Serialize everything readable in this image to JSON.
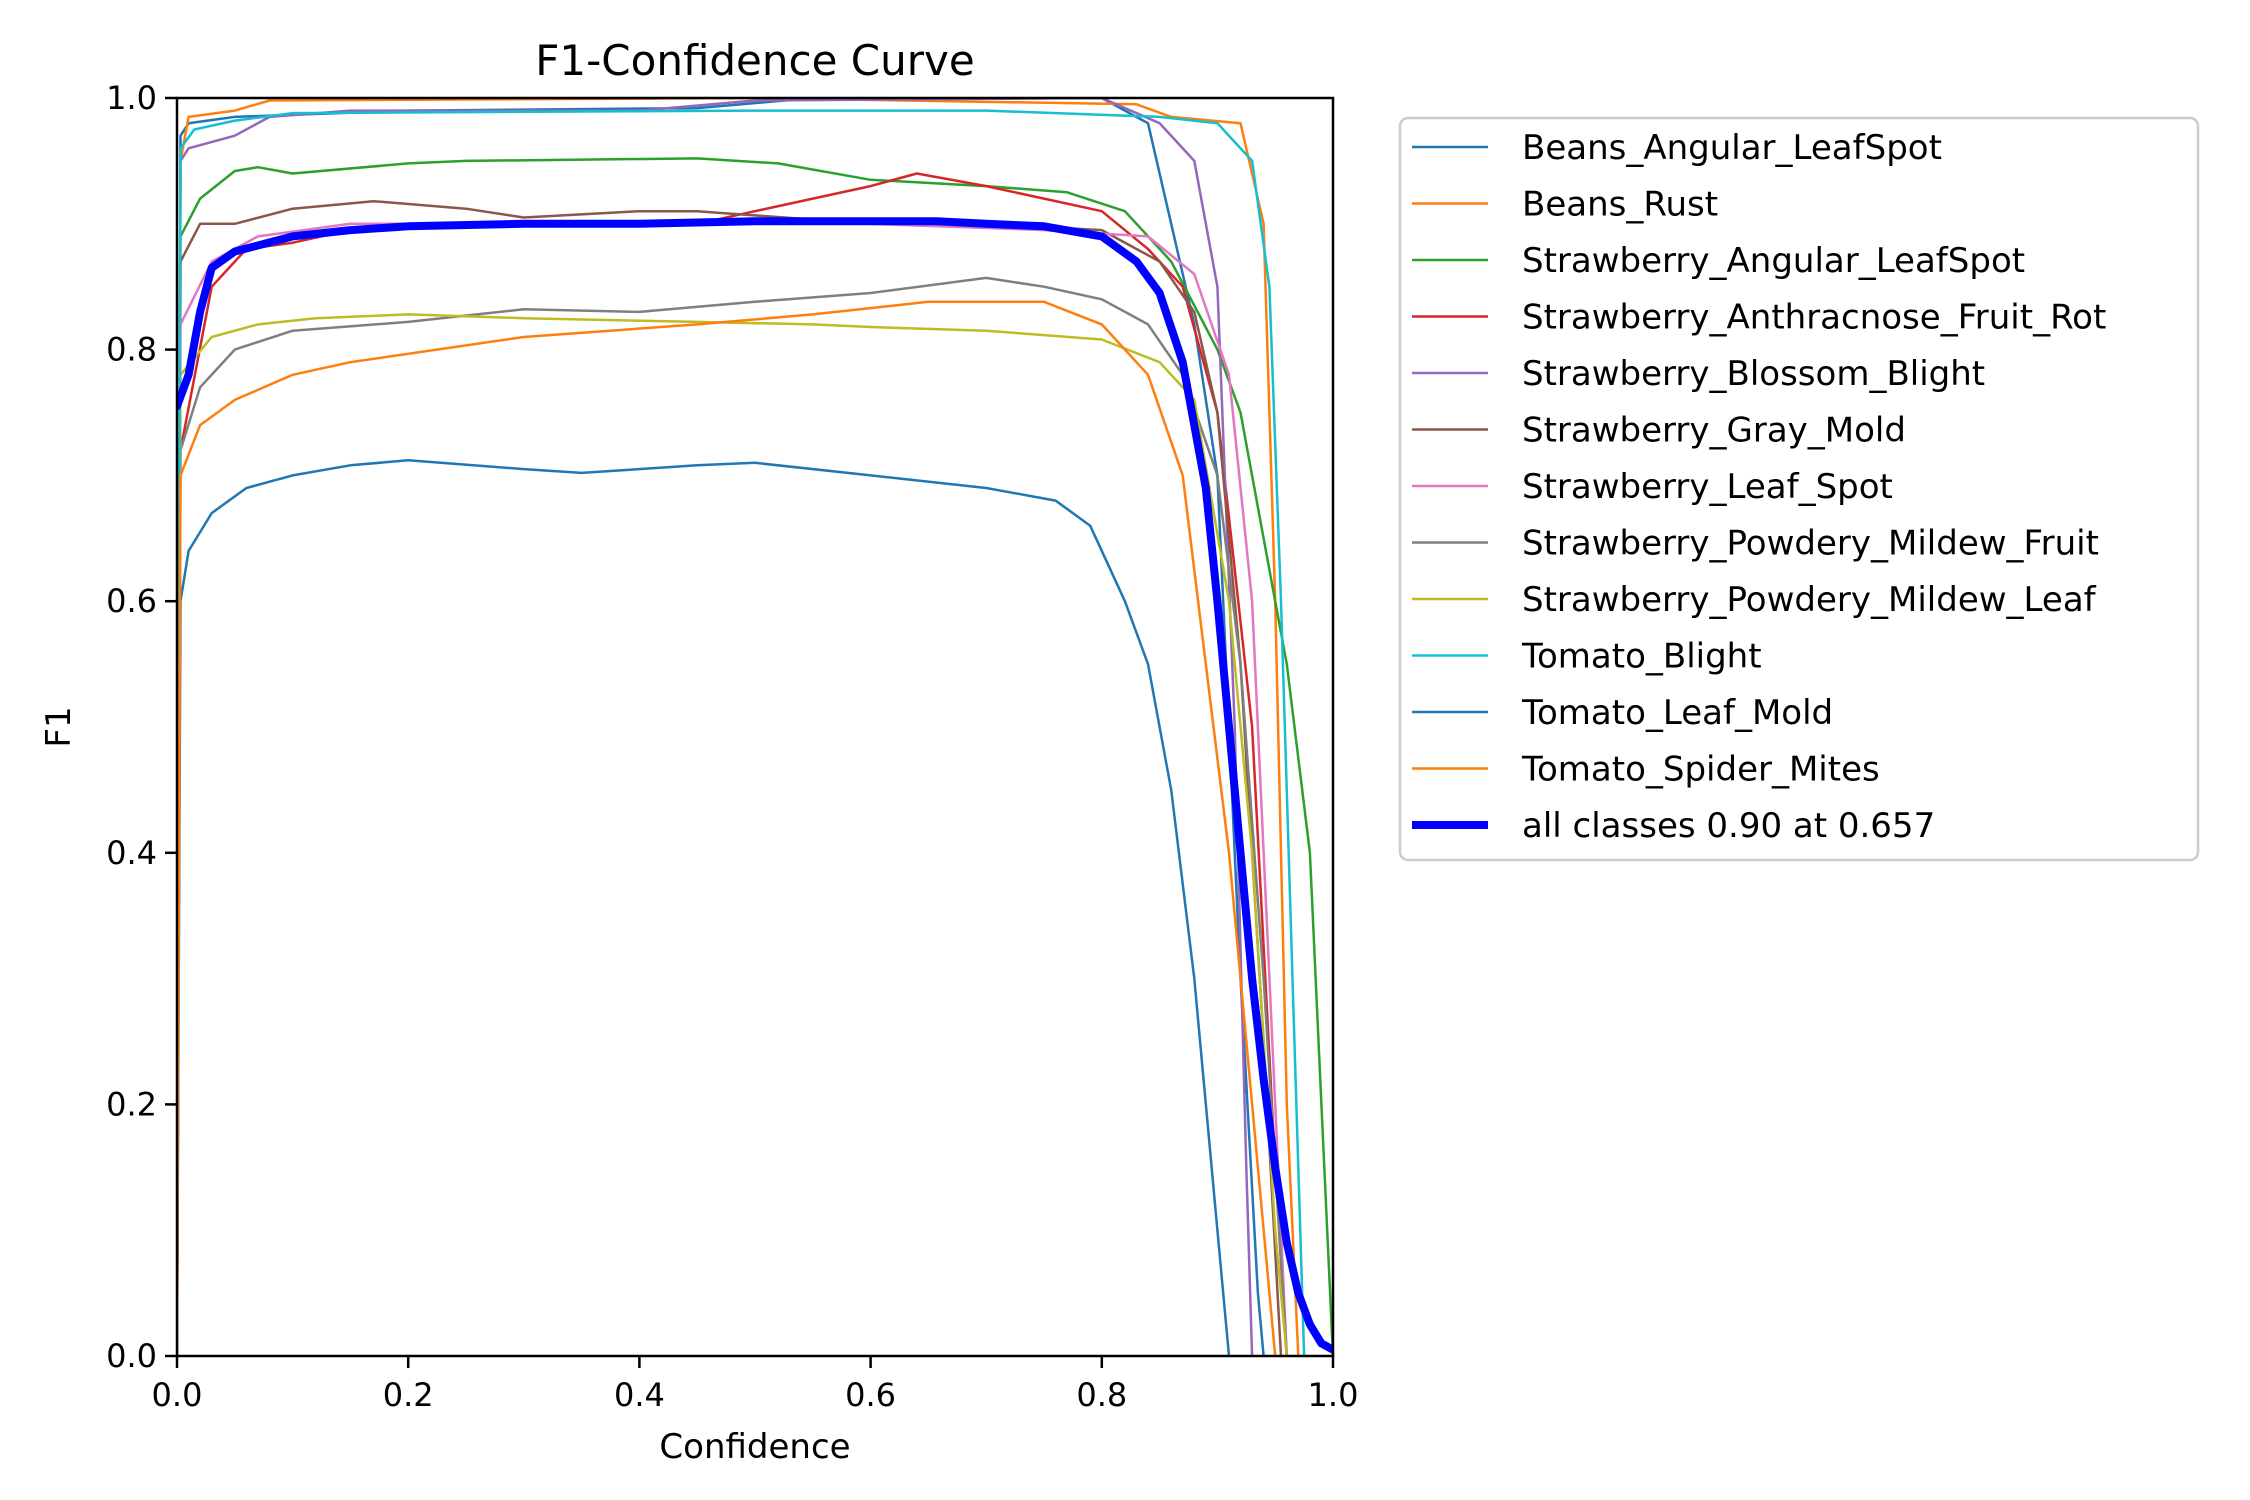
{
  "chart_data": {
    "type": "line",
    "title": "F1-Confidence Curve",
    "xlabel": "Confidence",
    "ylabel": "F1",
    "xlim": [
      0.0,
      1.0
    ],
    "ylim": [
      0.0,
      1.0
    ],
    "x_ticks": [
      "0.0",
      "0.2",
      "0.4",
      "0.6",
      "0.8",
      "1.0"
    ],
    "y_ticks": [
      "0.0",
      "0.2",
      "0.4",
      "0.6",
      "0.8",
      "1.0"
    ],
    "grid": false,
    "legend_position": "outside-right-top",
    "series": [
      {
        "name": "Beans_Angular_LeafSpot",
        "color": "#1f77b4",
        "points": [
          [
            0.0,
            0.0
          ],
          [
            0.003,
            0.97
          ],
          [
            0.01,
            0.98
          ],
          [
            0.05,
            0.985
          ],
          [
            0.2,
            0.99
          ],
          [
            0.45,
            0.992
          ],
          [
            0.55,
            1.0
          ],
          [
            0.8,
            1.0
          ],
          [
            0.84,
            0.98
          ],
          [
            0.86,
            0.9
          ],
          [
            0.88,
            0.82
          ],
          [
            0.9,
            0.7
          ],
          [
            0.92,
            0.3
          ],
          [
            0.935,
            0.05
          ],
          [
            0.94,
            0.0
          ]
        ]
      },
      {
        "name": "Beans_Rust",
        "color": "#ff7f0e",
        "points": [
          [
            0.0,
            0.0
          ],
          [
            0.003,
            0.95
          ],
          [
            0.01,
            0.985
          ],
          [
            0.05,
            0.99
          ],
          [
            0.08,
            0.998
          ],
          [
            0.5,
            1.0
          ],
          [
            0.83,
            0.995
          ],
          [
            0.86,
            0.985
          ],
          [
            0.92,
            0.98
          ],
          [
            0.94,
            0.9
          ],
          [
            0.95,
            0.6
          ],
          [
            0.96,
            0.2
          ],
          [
            0.97,
            0.0
          ]
        ]
      },
      {
        "name": "Strawberry_Angular_LeafSpot",
        "color": "#2ca02c",
        "points": [
          [
            0.0,
            0.0
          ],
          [
            0.003,
            0.89
          ],
          [
            0.02,
            0.92
          ],
          [
            0.05,
            0.942
          ],
          [
            0.07,
            0.945
          ],
          [
            0.1,
            0.94
          ],
          [
            0.2,
            0.948
          ],
          [
            0.25,
            0.95
          ],
          [
            0.45,
            0.952
          ],
          [
            0.52,
            0.948
          ],
          [
            0.6,
            0.935
          ],
          [
            0.7,
            0.93
          ],
          [
            0.77,
            0.925
          ],
          [
            0.82,
            0.91
          ],
          [
            0.86,
            0.87
          ],
          [
            0.9,
            0.8
          ],
          [
            0.92,
            0.75
          ],
          [
            0.94,
            0.65
          ],
          [
            0.96,
            0.55
          ],
          [
            0.98,
            0.4
          ],
          [
            0.99,
            0.2
          ],
          [
            1.0,
            0.0
          ]
        ]
      },
      {
        "name": "Strawberry_Anthracnose_Fruit_Rot",
        "color": "#d62728",
        "points": [
          [
            0.0,
            0.0
          ],
          [
            0.003,
            0.72
          ],
          [
            0.03,
            0.85
          ],
          [
            0.06,
            0.88
          ],
          [
            0.1,
            0.885
          ],
          [
            0.15,
            0.895
          ],
          [
            0.3,
            0.9
          ],
          [
            0.45,
            0.9
          ],
          [
            0.5,
            0.91
          ],
          [
            0.55,
            0.92
          ],
          [
            0.6,
            0.93
          ],
          [
            0.64,
            0.94
          ],
          [
            0.7,
            0.93
          ],
          [
            0.75,
            0.92
          ],
          [
            0.8,
            0.91
          ],
          [
            0.84,
            0.88
          ],
          [
            0.87,
            0.85
          ],
          [
            0.9,
            0.75
          ],
          [
            0.93,
            0.5
          ],
          [
            0.95,
            0.15
          ],
          [
            0.96,
            0.0
          ]
        ]
      },
      {
        "name": "Strawberry_Blossom_Blight",
        "color": "#9467bd",
        "points": [
          [
            0.0,
            0.0
          ],
          [
            0.003,
            0.95
          ],
          [
            0.01,
            0.96
          ],
          [
            0.05,
            0.97
          ],
          [
            0.08,
            0.985
          ],
          [
            0.15,
            0.99
          ],
          [
            0.4,
            0.99
          ],
          [
            0.5,
            0.998
          ],
          [
            0.8,
            1.0
          ],
          [
            0.85,
            0.98
          ],
          [
            0.88,
            0.95
          ],
          [
            0.9,
            0.85
          ],
          [
            0.915,
            0.5
          ],
          [
            0.925,
            0.15
          ],
          [
            0.93,
            0.0
          ]
        ]
      },
      {
        "name": "Strawberry_Gray_Mold",
        "color": "#8c564b",
        "points": [
          [
            0.0,
            0.0
          ],
          [
            0.003,
            0.87
          ],
          [
            0.02,
            0.9
          ],
          [
            0.05,
            0.9
          ],
          [
            0.1,
            0.912
          ],
          [
            0.17,
            0.918
          ],
          [
            0.25,
            0.912
          ],
          [
            0.3,
            0.905
          ],
          [
            0.4,
            0.91
          ],
          [
            0.45,
            0.91
          ],
          [
            0.6,
            0.9
          ],
          [
            0.7,
            0.9
          ],
          [
            0.8,
            0.895
          ],
          [
            0.85,
            0.87
          ],
          [
            0.88,
            0.83
          ],
          [
            0.9,
            0.75
          ],
          [
            0.92,
            0.55
          ],
          [
            0.94,
            0.25
          ],
          [
            0.955,
            0.0
          ]
        ]
      },
      {
        "name": "Strawberry_Leaf_Spot",
        "color": "#e377c2",
        "points": [
          [
            0.0,
            0.0
          ],
          [
            0.003,
            0.82
          ],
          [
            0.03,
            0.87
          ],
          [
            0.07,
            0.89
          ],
          [
            0.15,
            0.9
          ],
          [
            0.4,
            0.9
          ],
          [
            0.6,
            0.9
          ],
          [
            0.75,
            0.895
          ],
          [
            0.84,
            0.89
          ],
          [
            0.88,
            0.86
          ],
          [
            0.91,
            0.78
          ],
          [
            0.93,
            0.6
          ],
          [
            0.95,
            0.2
          ],
          [
            0.96,
            0.0
          ]
        ]
      },
      {
        "name": "Strawberry_Powdery_Mildew_Fruit",
        "color": "#7f7f7f",
        "points": [
          [
            0.0,
            0.0
          ],
          [
            0.003,
            0.72
          ],
          [
            0.02,
            0.77
          ],
          [
            0.05,
            0.8
          ],
          [
            0.1,
            0.815
          ],
          [
            0.2,
            0.822
          ],
          [
            0.3,
            0.832
          ],
          [
            0.4,
            0.83
          ],
          [
            0.5,
            0.838
          ],
          [
            0.6,
            0.845
          ],
          [
            0.7,
            0.857
          ],
          [
            0.75,
            0.85
          ],
          [
            0.8,
            0.84
          ],
          [
            0.84,
            0.82
          ],
          [
            0.87,
            0.78
          ],
          [
            0.9,
            0.7
          ],
          [
            0.92,
            0.55
          ],
          [
            0.94,
            0.3
          ],
          [
            0.96,
            0.0
          ]
        ]
      },
      {
        "name": "Strawberry_Powdery_Mildew_Leaf",
        "color": "#bcbd22",
        "points": [
          [
            0.0,
            0.0
          ],
          [
            0.003,
            0.78
          ],
          [
            0.03,
            0.81
          ],
          [
            0.07,
            0.82
          ],
          [
            0.12,
            0.825
          ],
          [
            0.2,
            0.828
          ],
          [
            0.3,
            0.825
          ],
          [
            0.45,
            0.822
          ],
          [
            0.55,
            0.82
          ],
          [
            0.6,
            0.818
          ],
          [
            0.7,
            0.815
          ],
          [
            0.8,
            0.808
          ],
          [
            0.85,
            0.79
          ],
          [
            0.88,
            0.76
          ],
          [
            0.91,
            0.6
          ],
          [
            0.93,
            0.4
          ],
          [
            0.95,
            0.1
          ],
          [
            0.96,
            0.0
          ]
        ]
      },
      {
        "name": "Tomato_Blight",
        "color": "#17becf",
        "points": [
          [
            0.0,
            0.0
          ],
          [
            0.003,
            0.96
          ],
          [
            0.015,
            0.975
          ],
          [
            0.05,
            0.982
          ],
          [
            0.1,
            0.988
          ],
          [
            0.5,
            0.99
          ],
          [
            0.7,
            0.99
          ],
          [
            0.85,
            0.985
          ],
          [
            0.9,
            0.98
          ],
          [
            0.93,
            0.95
          ],
          [
            0.945,
            0.85
          ],
          [
            0.955,
            0.6
          ],
          [
            0.965,
            0.3
          ],
          [
            0.975,
            0.0
          ]
        ]
      },
      {
        "name": "Tomato_Leaf_Mold",
        "color": "#1f77b4",
        "points": [
          [
            0.0,
            0.0
          ],
          [
            0.003,
            0.6
          ],
          [
            0.01,
            0.64
          ],
          [
            0.03,
            0.67
          ],
          [
            0.06,
            0.69
          ],
          [
            0.1,
            0.7
          ],
          [
            0.15,
            0.708
          ],
          [
            0.2,
            0.712
          ],
          [
            0.3,
            0.705
          ],
          [
            0.35,
            0.702
          ],
          [
            0.45,
            0.708
          ],
          [
            0.5,
            0.71
          ],
          [
            0.6,
            0.7
          ],
          [
            0.7,
            0.69
          ],
          [
            0.76,
            0.68
          ],
          [
            0.79,
            0.66
          ],
          [
            0.82,
            0.6
          ],
          [
            0.84,
            0.55
          ],
          [
            0.86,
            0.45
          ],
          [
            0.88,
            0.3
          ],
          [
            0.9,
            0.1
          ],
          [
            0.91,
            0.0
          ]
        ]
      },
      {
        "name": "Tomato_Spider_Mites",
        "color": "#ff7f0e",
        "points": [
          [
            0.0,
            0.0
          ],
          [
            0.003,
            0.7
          ],
          [
            0.02,
            0.74
          ],
          [
            0.05,
            0.76
          ],
          [
            0.1,
            0.78
          ],
          [
            0.15,
            0.79
          ],
          [
            0.3,
            0.81
          ],
          [
            0.45,
            0.82
          ],
          [
            0.55,
            0.828
          ],
          [
            0.65,
            0.838
          ],
          [
            0.75,
            0.838
          ],
          [
            0.8,
            0.82
          ],
          [
            0.84,
            0.78
          ],
          [
            0.87,
            0.7
          ],
          [
            0.89,
            0.55
          ],
          [
            0.91,
            0.4
          ],
          [
            0.93,
            0.2
          ],
          [
            0.95,
            0.0
          ]
        ]
      },
      {
        "name": "all classes 0.90 at 0.657",
        "color": "#0000ff",
        "width": 8,
        "points": [
          [
            0.0,
            0.755
          ],
          [
            0.01,
            0.78
          ],
          [
            0.02,
            0.83
          ],
          [
            0.03,
            0.865
          ],
          [
            0.05,
            0.878
          ],
          [
            0.1,
            0.89
          ],
          [
            0.15,
            0.895
          ],
          [
            0.2,
            0.898
          ],
          [
            0.3,
            0.9
          ],
          [
            0.4,
            0.9
          ],
          [
            0.5,
            0.902
          ],
          [
            0.6,
            0.902
          ],
          [
            0.657,
            0.902
          ],
          [
            0.7,
            0.9
          ],
          [
            0.75,
            0.898
          ],
          [
            0.8,
            0.89
          ],
          [
            0.83,
            0.87
          ],
          [
            0.85,
            0.845
          ],
          [
            0.87,
            0.79
          ],
          [
            0.89,
            0.69
          ],
          [
            0.9,
            0.6
          ],
          [
            0.91,
            0.5
          ],
          [
            0.92,
            0.4
          ],
          [
            0.93,
            0.3
          ],
          [
            0.94,
            0.22
          ],
          [
            0.95,
            0.15
          ],
          [
            0.96,
            0.09
          ],
          [
            0.97,
            0.05
          ],
          [
            0.98,
            0.025
          ],
          [
            0.99,
            0.01
          ],
          [
            1.0,
            0.005
          ]
        ]
      }
    ]
  }
}
